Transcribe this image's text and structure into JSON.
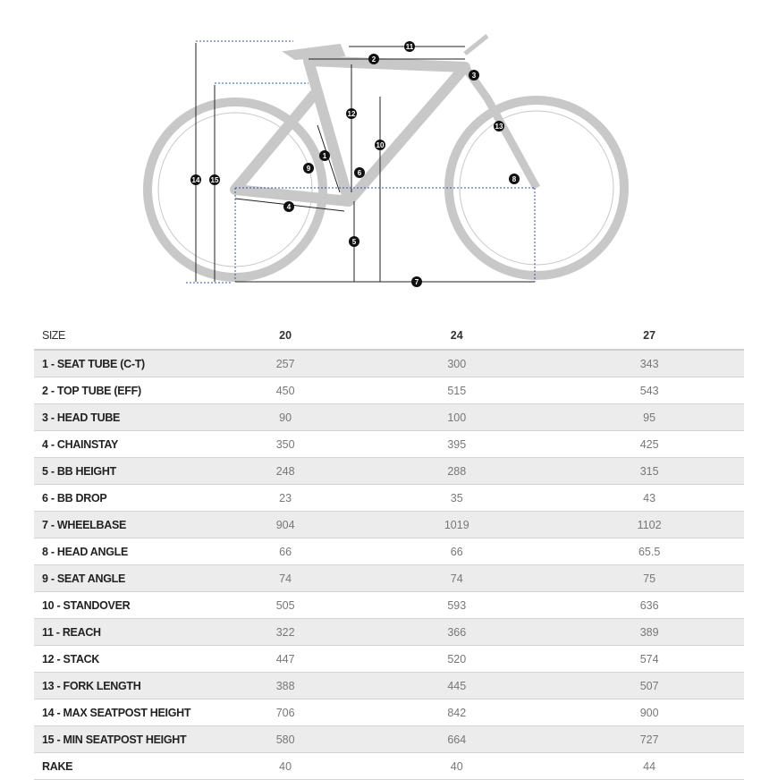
{
  "diagram": {
    "markers": [
      "1",
      "2",
      "3",
      "4",
      "5",
      "6",
      "7",
      "8",
      "9",
      "10",
      "11",
      "12",
      "13",
      "14",
      "15"
    ]
  },
  "table": {
    "header": [
      "SIZE",
      "20",
      "24",
      "27"
    ],
    "rows": [
      [
        "1 - SEAT TUBE (C-T)",
        "257",
        "300",
        "343"
      ],
      [
        "2 - TOP TUBE (EFF)",
        "450",
        "515",
        "543"
      ],
      [
        "3 - HEAD TUBE",
        "90",
        "100",
        "95"
      ],
      [
        "4 - CHAINSTAY",
        "350",
        "395",
        "425"
      ],
      [
        "5 - BB HEIGHT",
        "248",
        "288",
        "315"
      ],
      [
        "6 - BB DROP",
        "23",
        "35",
        "43"
      ],
      [
        "7 - WHEELBASE",
        "904",
        "1019",
        "1102"
      ],
      [
        "8 - HEAD ANGLE",
        "66",
        "66",
        "65.5"
      ],
      [
        "9 - SEAT ANGLE",
        "74",
        "74",
        "75"
      ],
      [
        "10 - STANDOVER",
        "505",
        "593",
        "636"
      ],
      [
        "11 - REACH",
        "322",
        "366",
        "389"
      ],
      [
        "12 - STACK",
        "447",
        "520",
        "574"
      ],
      [
        "13 - FORK LENGTH",
        "388",
        "445",
        "507"
      ],
      [
        "14 - MAX SEATPOST HEIGHT",
        "706",
        "842",
        "900"
      ],
      [
        "15 - MIN SEATPOST HEIGHT",
        "580",
        "664",
        "727"
      ],
      [
        "RAKE",
        "40",
        "40",
        "44"
      ]
    ]
  }
}
